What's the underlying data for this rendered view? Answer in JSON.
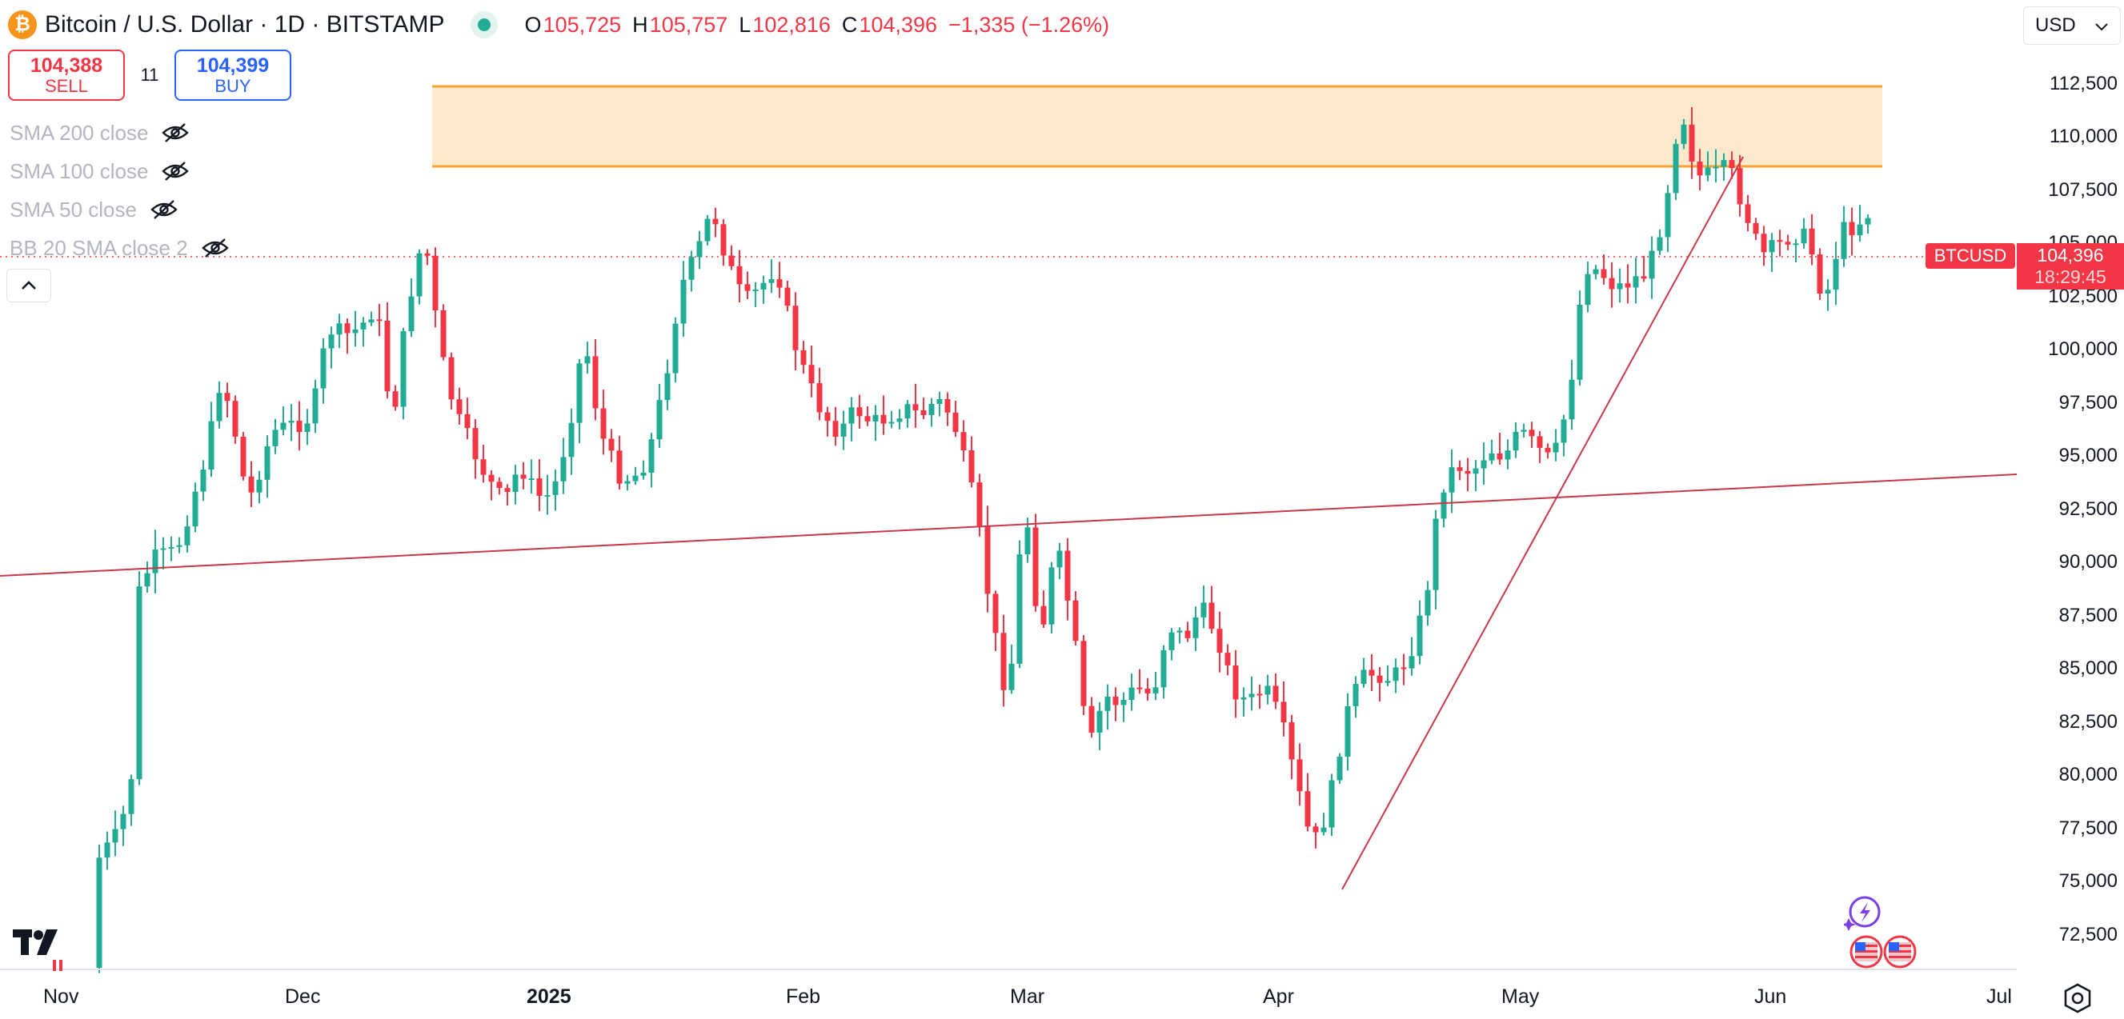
{
  "header": {
    "coin_glyph": "₿",
    "symbol": "Bitcoin / U.S. Dollar · 1D · BITSTAMP",
    "ohlc": [
      {
        "key": "O",
        "value": "105,725"
      },
      {
        "key": "H",
        "value": "105,757"
      },
      {
        "key": "L",
        "value": "102,816"
      },
      {
        "key": "C",
        "value": "104,396"
      }
    ],
    "change": "−1,335 (−1.26%)",
    "status_color": "#22ab94"
  },
  "trade": {
    "sell_price": "104,388",
    "sell_label": "SELL",
    "spread": "11",
    "buy_price": "104,399",
    "buy_label": "BUY"
  },
  "indicators": [
    {
      "label": "SMA 200 close",
      "icon": "eye-hidden-icon"
    },
    {
      "label": "SMA 100 close",
      "icon": "eye-hidden-icon"
    },
    {
      "label": "SMA 50 close",
      "icon": "eye-hidden-icon"
    },
    {
      "label": "BB 20 SMA close 2",
      "icon": "eye-hidden-icon"
    }
  ],
  "currency": "USD",
  "price_axis": [
    "112,500",
    "110,000",
    "107,500",
    "105,000",
    "102,500",
    "100,000",
    "97,500",
    "95,000",
    "92,500",
    "90,000",
    "87,500",
    "85,000",
    "82,500",
    "80,000",
    "77,500",
    "75,000",
    "72,500"
  ],
  "current_price": {
    "symbol": "BTCUSD",
    "price": "104,396",
    "countdown": "18:29:45"
  },
  "time_axis": [
    {
      "label": "Nov",
      "bold": false
    },
    {
      "label": "Dec",
      "bold": false
    },
    {
      "label": "2025",
      "bold": true
    },
    {
      "label": "Feb",
      "bold": false
    },
    {
      "label": "Mar",
      "bold": false
    },
    {
      "label": "Apr",
      "bold": false
    },
    {
      "label": "May",
      "bold": false
    },
    {
      "label": "Jun",
      "bold": false
    },
    {
      "label": "Jul",
      "bold": false
    }
  ],
  "colors": {
    "up": "#22ab94",
    "down": "#f23645",
    "zone_fill": "#ffe9cc",
    "zone_line": "#f7a530",
    "trend": "#c8384a"
  },
  "chart_data": {
    "type": "candlestick",
    "value_range": [
      71000,
      113800
    ],
    "key_points": {
      "resistance_zone": [
        108600,
        112250
      ],
      "swing_high": 111900,
      "swing_low": 74500,
      "last_close": 104396
    }
  }
}
